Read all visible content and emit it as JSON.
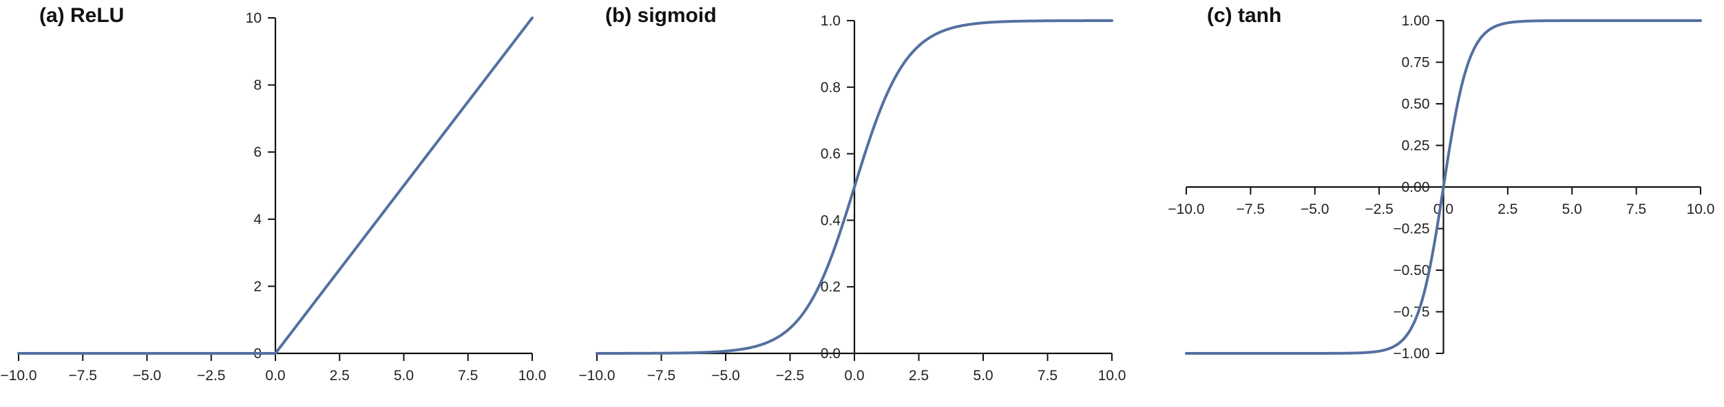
{
  "colors": {
    "curve": "#5470a0",
    "axis": "#111111",
    "text": "#222222"
  },
  "chart_data": [
    {
      "type": "line",
      "title": "(a) ReLU",
      "function": "relu",
      "xlim": [
        -10,
        10
      ],
      "ylim": [
        0,
        10
      ],
      "x_ticks": [
        -10,
        -7.5,
        -5,
        -2.5,
        0,
        2.5,
        5,
        7.5,
        10
      ],
      "x_tick_labels": [
        "−10.0",
        "−7.5",
        "−5.0",
        "−2.5",
        "0.0",
        "2.5",
        "5.0",
        "7.5",
        "10.0"
      ],
      "y_ticks": [
        0,
        2,
        4,
        6,
        8,
        10
      ],
      "y_tick_labels": [
        "0",
        "2",
        "4",
        "6",
        "8",
        "10"
      ],
      "x": [
        -10,
        -7.5,
        -5,
        -2.5,
        0,
        2.5,
        5,
        7.5,
        10
      ],
      "y": [
        0,
        0,
        0,
        0,
        0,
        2.5,
        5,
        7.5,
        10
      ],
      "grid": false
    },
    {
      "type": "line",
      "title": "(b) sigmoid",
      "function": "sigmoid",
      "xlim": [
        -10,
        10
      ],
      "ylim": [
        0,
        1
      ],
      "x_ticks": [
        -10,
        -7.5,
        -5,
        -2.5,
        0,
        2.5,
        5,
        7.5,
        10
      ],
      "x_tick_labels": [
        "−10.0",
        "−7.5",
        "−5.0",
        "−2.5",
        "0.0",
        "2.5",
        "5.0",
        "7.5",
        "10.0"
      ],
      "y_ticks": [
        0,
        0.2,
        0.4,
        0.6,
        0.8,
        1.0
      ],
      "y_tick_labels": [
        "0.0",
        "0.2",
        "0.4",
        "0.6",
        "0.8",
        "1.0"
      ],
      "x": [
        -10,
        -7.5,
        -5,
        -2.5,
        0,
        2.5,
        5,
        7.5,
        10
      ],
      "y": [
        4.54e-05,
        0.000553,
        0.00669,
        0.0759,
        0.5,
        0.924,
        0.993,
        0.9994,
        0.99995
      ],
      "grid": false
    },
    {
      "type": "line",
      "title": "(c) tanh",
      "function": "tanh",
      "xlim": [
        -10,
        10
      ],
      "ylim": [
        -1,
        1
      ],
      "x_ticks": [
        -10,
        -7.5,
        -5,
        -2.5,
        0,
        2.5,
        5,
        7.5,
        10
      ],
      "x_tick_labels": [
        "−10.0",
        "−7.5",
        "−5.0",
        "−2.5",
        "0.0",
        "2.5",
        "5.0",
        "7.5",
        "10.0"
      ],
      "y_ticks": [
        -1,
        -0.75,
        -0.5,
        -0.25,
        0,
        0.25,
        0.5,
        0.75,
        1
      ],
      "y_tick_labels": [
        "−1.00",
        "−0.75",
        "−0.50",
        "−0.25",
        "0.00",
        "0.25",
        "0.50",
        "0.75",
        "1.00"
      ],
      "x": [
        -10,
        -7.5,
        -5,
        -2.5,
        0,
        2.5,
        5,
        7.5,
        10
      ],
      "y": [
        -1,
        -1,
        -0.9999,
        -0.9866,
        0,
        0.9866,
        0.9999,
        1,
        1
      ],
      "grid": false
    }
  ]
}
